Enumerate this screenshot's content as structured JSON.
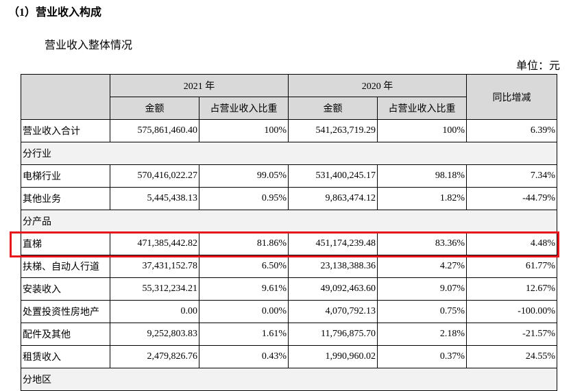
{
  "heading": "（1）营业收入构成",
  "subtitle": "营业收入整体情况",
  "unit": "单位：元",
  "table": {
    "years": [
      "2021 年",
      "2020 年"
    ],
    "subheaders": [
      "金额",
      "占营业收入比重",
      "金额",
      "占营业收入比重"
    ],
    "change_header": "同比增减",
    "rows": [
      [
        "营业收入合计",
        "575,861,460.40",
        "100%",
        "541,263,719.29",
        "100%",
        "6.39%"
      ],
      [
        "分行业"
      ],
      [
        "电梯行业",
        "570,416,022.27",
        "99.05%",
        "531,400,245.17",
        "98.18%",
        "7.34%"
      ],
      [
        "其他业务",
        "5,445,438.13",
        "0.95%",
        "9,863,474.12",
        "1.82%",
        "-44.79%"
      ],
      [
        "分产品"
      ],
      [
        "直梯",
        "471,385,442.82",
        "81.86%",
        "451,174,239.48",
        "83.36%",
        "4.48%"
      ],
      [
        "扶梯、自动人行道",
        "37,431,152.78",
        "6.50%",
        "23,138,388.36",
        "4.27%",
        "61.77%"
      ],
      [
        "安装收入",
        "55,312,234.21",
        "9.61%",
        "49,092,463.60",
        "9.07%",
        "12.67%"
      ],
      [
        "处置投资性房地产",
        "0.00",
        "0.00%",
        "4,070,792.13",
        "0.75%",
        "-100.00%"
      ],
      [
        "配件及其他",
        "9,252,803.83",
        "1.61%",
        "11,796,875.70",
        "2.18%",
        "-21.57%"
      ],
      [
        "租赁收入",
        "2,479,826.76",
        "0.43%",
        "1,990,960.02",
        "0.37%",
        "24.55%"
      ],
      [
        "分地区"
      ]
    ]
  }
}
